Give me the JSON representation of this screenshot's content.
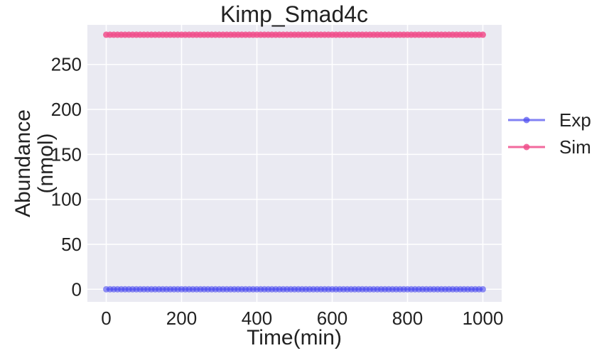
{
  "chart_data": {
    "type": "line",
    "title": "Kimp_Smad4c",
    "xlabel": "Time(min)",
    "ylabel_lines": [
      "Abundance",
      "(nmol)"
    ],
    "xlim": [
      -50,
      1050
    ],
    "ylim": [
      -14,
      294
    ],
    "xticks": [
      0,
      200,
      400,
      600,
      800,
      1000
    ],
    "yticks": [
      0,
      50,
      100,
      150,
      200,
      250
    ],
    "grid": true,
    "legend_position": "outside-right",
    "x": {
      "start": 0,
      "end": 1000,
      "step": 10
    },
    "series": [
      {
        "name": "Exp",
        "color": "#4b4bf0",
        "constant_value": 0
      },
      {
        "name": "Sim",
        "color": "#f0508c",
        "constant_value": 283
      }
    ]
  }
}
